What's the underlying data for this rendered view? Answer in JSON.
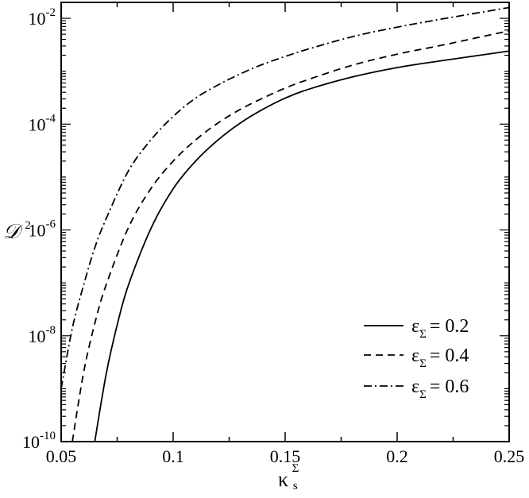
{
  "chart_data": {
    "type": "line",
    "title": "",
    "xlabel": "κ",
    "xlabel_super": "Σ",
    "xlabel_sub": "s",
    "ylabel": "𝒟",
    "ylabel_super": "2",
    "xlim": [
      0.05,
      0.25
    ],
    "ylim": [
      1e-10,
      0.02
    ],
    "yscale": "log",
    "grid": false,
    "legend_position": "bottom-right",
    "x_ticks": [
      {
        "value": 0.05,
        "label": "0.05"
      },
      {
        "value": 0.1,
        "label": "0.1"
      },
      {
        "value": 0.15,
        "label": "0.15"
      },
      {
        "value": 0.2,
        "label": "0.2"
      },
      {
        "value": 0.25,
        "label": "0.25"
      }
    ],
    "y_ticks": [
      {
        "value": 1e-10,
        "base": "10",
        "exp": "-10"
      },
      {
        "value": 1e-08,
        "base": "10",
        "exp": "-8"
      },
      {
        "value": 1e-06,
        "base": "10",
        "exp": "-6"
      },
      {
        "value": 0.0001,
        "base": "10",
        "exp": "-4"
      },
      {
        "value": 0.01,
        "base": "10",
        "exp": "-2"
      }
    ],
    "series": [
      {
        "name": "ε",
        "name_sub": "Σ",
        "name_value": "= 0.2",
        "dash": "solid",
        "x": [
          0.065,
          0.07,
          0.075,
          0.08,
          0.09,
          0.1,
          0.11,
          0.12,
          0.13,
          0.14,
          0.15,
          0.16,
          0.18,
          0.2,
          0.22,
          0.25
        ],
        "y": [
          1e-10,
          1.8e-09,
          1.6e-08,
          9e-08,
          1.05e-06,
          6e-06,
          2e-05,
          5e-05,
          0.000105,
          0.00019,
          0.00031,
          0.00045,
          0.00078,
          0.00117,
          0.00158,
          0.0024
        ]
      },
      {
        "name": "ε",
        "name_sub": "Σ",
        "name_value": "= 0.4",
        "dash": "dashed",
        "x": [
          0.055,
          0.06,
          0.065,
          0.07,
          0.08,
          0.09,
          0.1,
          0.11,
          0.12,
          0.13,
          0.14,
          0.15,
          0.16,
          0.18,
          0.2,
          0.22,
          0.25
        ],
        "y": [
          1e-10,
          2e-09,
          1.7e-08,
          9e-08,
          1.1e-06,
          6e-06,
          2e-05,
          5e-05,
          0.000105,
          0.00019,
          0.00031,
          0.00048,
          0.00069,
          0.0013,
          0.0021,
          0.0031,
          0.0058
        ]
      },
      {
        "name": "ε",
        "name_sub": "Σ",
        "name_value": "= 0.6",
        "dash": "dashdot",
        "x": [
          0.05,
          0.055,
          0.06,
          0.065,
          0.07,
          0.08,
          0.09,
          0.1,
          0.11,
          0.12,
          0.13,
          0.14,
          0.15,
          0.16,
          0.18,
          0.2,
          0.22,
          0.25
        ],
        "y": [
          1e-09,
          1.4e-08,
          9e-08,
          4.6e-07,
          1.6e-06,
          1.3e-05,
          5e-05,
          0.00014,
          0.00031,
          0.00055,
          0.00089,
          0.00135,
          0.0019,
          0.0026,
          0.0045,
          0.0068,
          0.0097,
          0.016
        ]
      }
    ]
  }
}
